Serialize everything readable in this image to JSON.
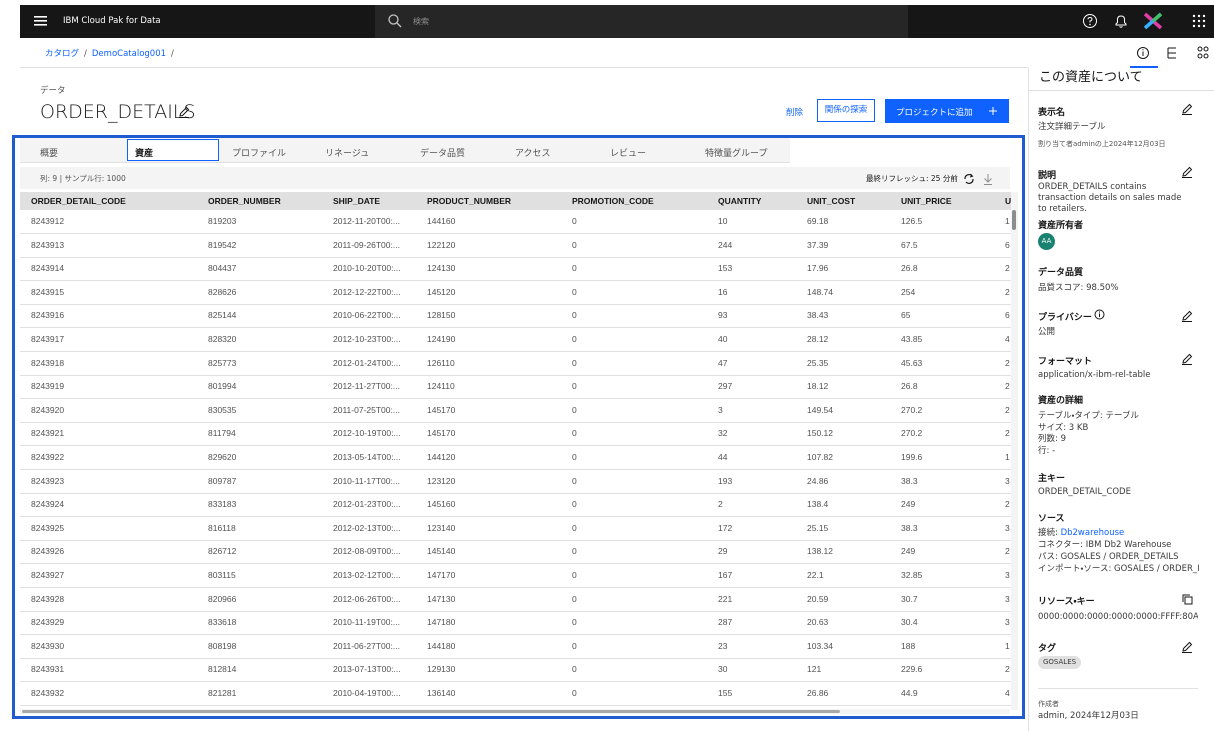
{
  "header": {
    "product": "IBM Cloud Pak for Data",
    "search_placeholder": "検索"
  },
  "breadcrumb": {
    "items": [
      "カタログ",
      "DemoCatalog001"
    ],
    "separator": "/"
  },
  "asset": {
    "category": "データ",
    "name": "ORDER_DETAILS"
  },
  "actions": {
    "delete": "削除",
    "explore": "関係の探索",
    "add": "プロジェクトに追加"
  },
  "tabs": [
    "概要",
    "資産",
    "プロファイル",
    "リネージュ",
    "データ品質",
    "アクセス",
    "レビュー",
    "特徴量グループ"
  ],
  "table": {
    "summary": "列: 9 | サンプル行: 1000",
    "refresh": "最終リフレッシュ: 25 分前",
    "columns": [
      "ORDER_DETAIL_CODE",
      "ORDER_NUMBER",
      "SHIP_DATE",
      "PRODUCT_NUMBER",
      "PROMOTION_CODE",
      "QUANTITY",
      "UNIT_COST",
      "UNIT_PRICE",
      "UN"
    ],
    "rows": [
      [
        "8243912",
        "819203",
        "2012-11-20T00:...",
        "144160",
        "0",
        "10",
        "69.18",
        "126.5",
        "1"
      ],
      [
        "8243913",
        "819542",
        "2011-09-26T00:...",
        "122120",
        "0",
        "244",
        "37.39",
        "67.5",
        "6"
      ],
      [
        "8243914",
        "804437",
        "2010-10-20T00:...",
        "124130",
        "0",
        "153",
        "17.96",
        "26.8",
        "2"
      ],
      [
        "8243915",
        "828626",
        "2012-12-22T00:...",
        "145120",
        "0",
        "16",
        "148.74",
        "254",
        "2"
      ],
      [
        "8243916",
        "825144",
        "2010-06-22T00:...",
        "128150",
        "0",
        "93",
        "38.43",
        "65",
        "6"
      ],
      [
        "8243917",
        "828320",
        "2012-10-23T00:...",
        "124190",
        "0",
        "40",
        "28.12",
        "43.85",
        "4"
      ],
      [
        "8243918",
        "825773",
        "2012-01-24T00:...",
        "126110",
        "0",
        "47",
        "25.35",
        "45.63",
        "2"
      ],
      [
        "8243919",
        "801994",
        "2012-11-27T00:...",
        "124110",
        "0",
        "297",
        "18.12",
        "26.8",
        "2"
      ],
      [
        "8243920",
        "830535",
        "2011-07-25T00:...",
        "145170",
        "0",
        "3",
        "149.54",
        "270.2",
        "2"
      ],
      [
        "8243921",
        "811794",
        "2012-10-19T00:...",
        "145170",
        "0",
        "32",
        "150.12",
        "270.2",
        "2"
      ],
      [
        "8243922",
        "829620",
        "2013-05-14T00:...",
        "144120",
        "0",
        "44",
        "107.82",
        "199.6",
        "1"
      ],
      [
        "8243923",
        "809787",
        "2010-11-17T00:...",
        "123120",
        "0",
        "193",
        "24.86",
        "38.3",
        "3"
      ],
      [
        "8243924",
        "833183",
        "2012-01-23T00:...",
        "145160",
        "0",
        "2",
        "138.4",
        "249",
        "2"
      ],
      [
        "8243925",
        "816118",
        "2012-02-13T00:...",
        "123140",
        "0",
        "172",
        "25.15",
        "38.3",
        "3"
      ],
      [
        "8243926",
        "826712",
        "2012-08-09T00:...",
        "145140",
        "0",
        "29",
        "138.12",
        "249",
        "2"
      ],
      [
        "8243927",
        "803115",
        "2013-02-12T00:...",
        "147170",
        "0",
        "167",
        "22.1",
        "32.85",
        "3"
      ],
      [
        "8243928",
        "820966",
        "2012-06-26T00:...",
        "147130",
        "0",
        "221",
        "20.59",
        "30.7",
        "3"
      ],
      [
        "8243929",
        "833618",
        "2010-11-19T00:...",
        "147180",
        "0",
        "287",
        "20.63",
        "30.4",
        "3"
      ],
      [
        "8243930",
        "808198",
        "2011-06-27T00:...",
        "144180",
        "0",
        "23",
        "103.34",
        "188",
        "1"
      ],
      [
        "8243931",
        "812814",
        "2013-07-13T00:...",
        "129130",
        "0",
        "30",
        "121",
        "229.6",
        "2"
      ],
      [
        "8243932",
        "821281",
        "2010-04-19T00:...",
        "136140",
        "0",
        "155",
        "26.86",
        "44.9",
        "4"
      ]
    ]
  },
  "panel": {
    "title": "この資産について",
    "display_name": {
      "label": "表示名",
      "value": "注文詳細テーブル",
      "assigned": "割り当て者adminの上2024年12月03日"
    },
    "description": {
      "label": "説明",
      "value": "ORDER_DETAILS contains transaction details on sales made to retailers."
    },
    "owner": {
      "label": "資産所有者",
      "initials": "AA"
    },
    "quality": {
      "label": "データ品質",
      "value": "品質スコア: 98.50%"
    },
    "privacy": {
      "label": "プライバシー",
      "value": "公開"
    },
    "format": {
      "label": "フォーマット",
      "value": "application/x-ibm-rel-table"
    },
    "details": {
      "label": "資産の詳細",
      "lines": [
        "テーブル・タイプ: テーブル",
        "サイズ: 3 KB",
        "列数: 9",
        "行: -"
      ]
    },
    "primary_key": {
      "label": "主キー",
      "value": "ORDER_DETAIL_CODE"
    },
    "source": {
      "label": "ソース",
      "connection_label": "接続:",
      "connection": "Db2warehouse",
      "lines": [
        "コネクター: IBM Db2 Warehouse",
        "パス: GOSALES / ORDER_DETAILS",
        "インポート・ソース: GOSALES / ORDER_I"
      ]
    },
    "resource_key": {
      "label": "リソース・キー",
      "value": "0000:0000:0000:0000:0000:FFFF:80A..."
    },
    "tags": {
      "label": "タグ",
      "items": [
        "GOSALES"
      ]
    },
    "created": {
      "label": "作成者",
      "value": "admin, 2024年12月03日"
    }
  }
}
